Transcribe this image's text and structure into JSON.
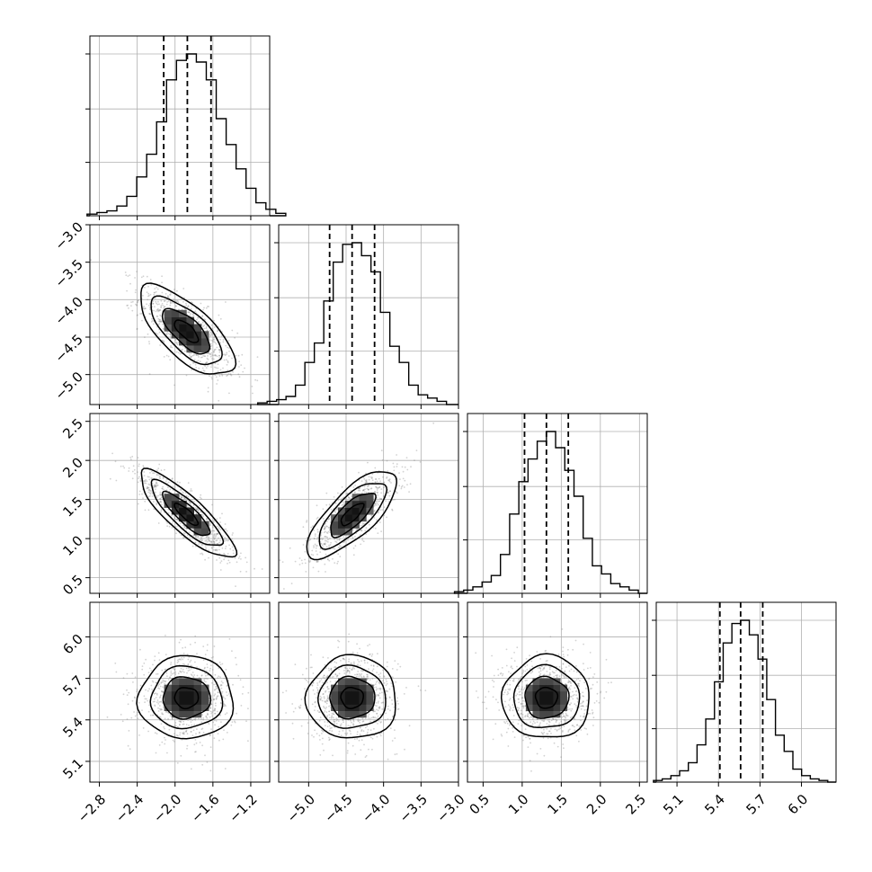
{
  "chart_data": {
    "type": "corner",
    "params": [
      {
        "range": [
          -2.9,
          -1.0
        ],
        "ticks": [
          -2.8,
          -2.4,
          -2.0,
          -1.6,
          -1.2
        ],
        "tick_labels": [
          "−2.8",
          "−2.4",
          "−2.0",
          "−1.6",
          "−1.2"
        ],
        "quantiles": [
          -2.12,
          -1.87,
          -1.62
        ],
        "hist": [
          0.01,
          0.02,
          0.03,
          0.06,
          0.12,
          0.24,
          0.38,
          0.58,
          0.84,
          0.96,
          1.0,
          0.95,
          0.84,
          0.6,
          0.44,
          0.29,
          0.17,
          0.08,
          0.04,
          0.015
        ],
        "mean": -1.88,
        "sd": 0.25
      },
      {
        "range": [
          -5.4,
          -3.0
        ],
        "ticks": [
          -5.0,
          -4.5,
          -4.0,
          -3.5,
          -3.0
        ],
        "tick_labels": [
          "−5.0",
          "−4.5",
          "−4.0",
          "−3.5",
          "−3.0"
        ],
        "quantiles": [
          -4.72,
          -4.42,
          -4.12
        ],
        "hist": [
          0.01,
          0.02,
          0.03,
          0.05,
          0.12,
          0.26,
          0.38,
          0.64,
          0.88,
          0.99,
          1.0,
          0.92,
          0.82,
          0.57,
          0.36,
          0.26,
          0.12,
          0.06,
          0.04,
          0.02
        ],
        "mean": -4.42,
        "sd": 0.3
      },
      {
        "range": [
          0.3,
          2.6
        ],
        "ticks": [
          0.5,
          1.0,
          1.5,
          2.0,
          2.5
        ],
        "tick_labels": [
          "0.5",
          "1.0",
          "1.5",
          "2.0",
          "2.5"
        ],
        "quantiles": [
          1.03,
          1.31,
          1.59
        ],
        "hist": [
          0.01,
          0.02,
          0.04,
          0.07,
          0.11,
          0.24,
          0.49,
          0.69,
          0.83,
          0.94,
          1.0,
          0.9,
          0.76,
          0.6,
          0.34,
          0.17,
          0.12,
          0.06,
          0.04,
          0.02
        ],
        "mean": 1.31,
        "sd": 0.28
      },
      {
        "range": [
          4.95,
          6.25
        ],
        "ticks": [
          5.1,
          5.4,
          5.7,
          6.0
        ],
        "tick_labels": [
          "5.1",
          "5.4",
          "5.7",
          "6.0"
        ],
        "quantiles": [
          5.41,
          5.56,
          5.72
        ],
        "hist": [
          0.01,
          0.02,
          0.04,
          0.07,
          0.12,
          0.23,
          0.39,
          0.62,
          0.86,
          0.98,
          1.0,
          0.91,
          0.76,
          0.51,
          0.29,
          0.19,
          0.08,
          0.04,
          0.02,
          0.01
        ],
        "mean": 5.56,
        "sd": 0.15
      }
    ],
    "correlations": [
      [
        1.0,
        -0.7,
        -0.85,
        0.0
      ],
      [
        -0.7,
        1.0,
        0.75,
        0.0
      ],
      [
        -0.85,
        0.75,
        1.0,
        0.0
      ],
      [
        0.0,
        0.0,
        0.0,
        1.0
      ]
    ],
    "contour_levels_sigma": [
      0.5,
      1.0,
      1.5,
      2.0
    ],
    "grid": true,
    "colors": {
      "points": "#7f7f7f",
      "contour": "#000000",
      "grid": "#b0b0b0"
    }
  }
}
